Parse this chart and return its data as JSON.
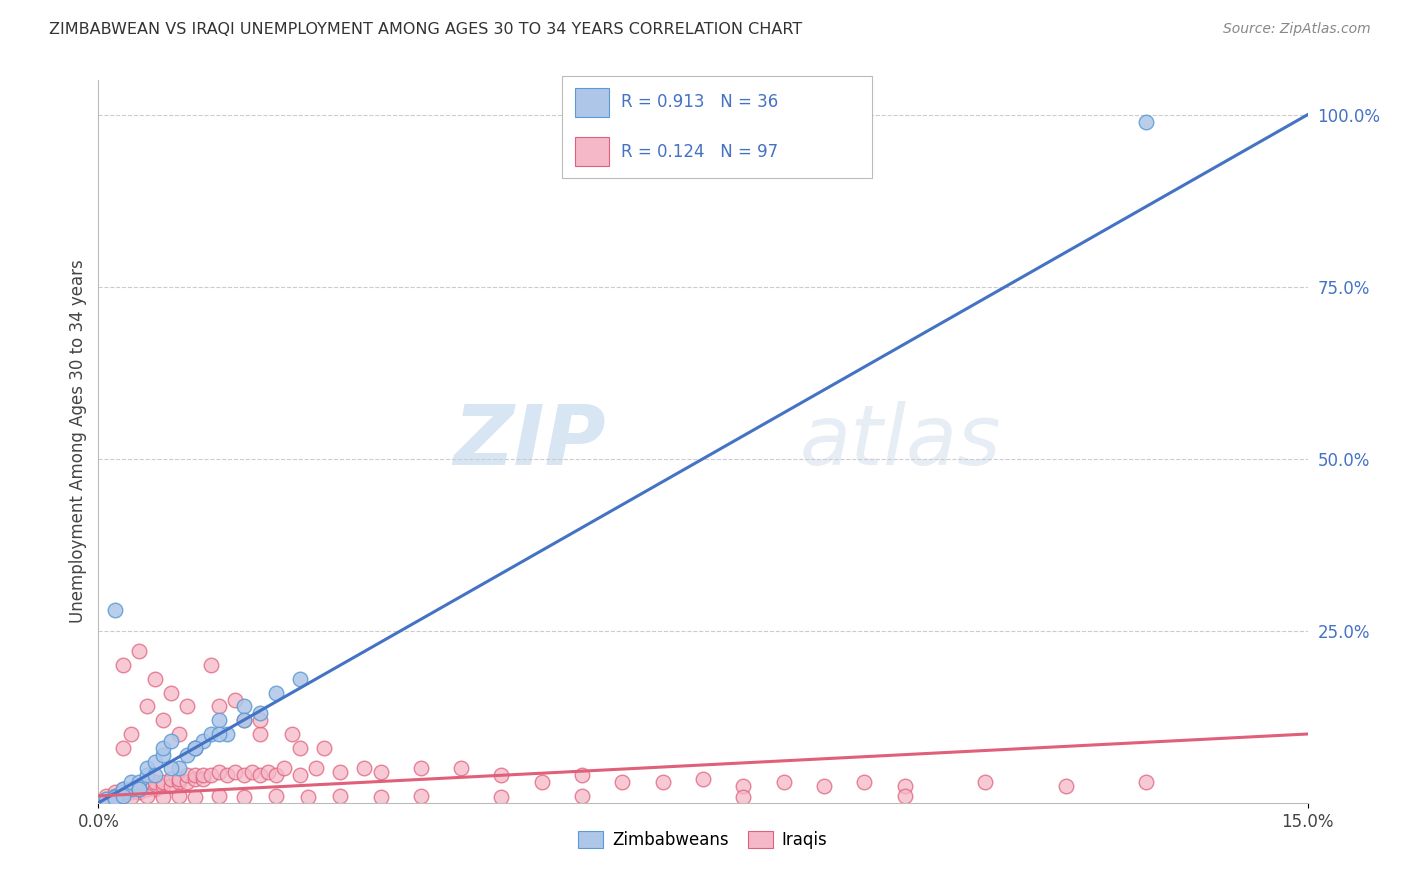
{
  "title": "ZIMBABWEAN VS IRAQI UNEMPLOYMENT AMONG AGES 30 TO 34 YEARS CORRELATION CHART",
  "source": "Source: ZipAtlas.com",
  "ylabel": "Unemployment Among Ages 30 to 34 years",
  "xlim": [
    0.0,
    0.15
  ],
  "ylim": [
    0.0,
    1.05
  ],
  "yticks_right": [
    0.25,
    0.5,
    0.75,
    1.0
  ],
  "ytick_labels_right": [
    "25.0%",
    "50.0%",
    "75.0%",
    "100.0%"
  ],
  "zim_color": "#aec6e8",
  "zim_edge_color": "#5b9bd5",
  "iraq_color": "#f4b8c8",
  "iraq_edge_color": "#e0607a",
  "zim_trend_color": "#4472c4",
  "iraq_trend_color": "#e0607a",
  "watermark_zip": "ZIP",
  "watermark_atlas": "atlas",
  "zim_trend_x0": 0.0,
  "zim_trend_y0": 0.0,
  "zim_trend_x1": 0.15,
  "zim_trend_y1": 1.0,
  "iraq_trend_x0": 0.0,
  "iraq_trend_y0": 0.01,
  "iraq_trend_x1": 0.15,
  "iraq_trend_y1": 0.1,
  "zim_points_x": [
    0.001,
    0.002,
    0.002,
    0.003,
    0.003,
    0.004,
    0.004,
    0.005,
    0.005,
    0.006,
    0.006,
    0.007,
    0.008,
    0.008,
    0.009,
    0.01,
    0.011,
    0.012,
    0.013,
    0.014,
    0.015,
    0.016,
    0.018,
    0.02,
    0.002,
    0.003,
    0.005,
    0.007,
    0.009,
    0.012,
    0.015,
    0.018,
    0.022,
    0.025,
    0.002,
    0.13
  ],
  "zim_points_y": [
    0.005,
    0.01,
    0.008,
    0.015,
    0.02,
    0.02,
    0.03,
    0.03,
    0.02,
    0.04,
    0.05,
    0.06,
    0.07,
    0.08,
    0.09,
    0.05,
    0.07,
    0.08,
    0.09,
    0.1,
    0.12,
    0.1,
    0.14,
    0.13,
    0.005,
    0.01,
    0.02,
    0.04,
    0.05,
    0.08,
    0.1,
    0.12,
    0.16,
    0.18,
    0.28,
    0.99
  ],
  "iraq_points_x": [
    0.001,
    0.001,
    0.002,
    0.002,
    0.002,
    0.003,
    0.003,
    0.003,
    0.004,
    0.004,
    0.005,
    0.005,
    0.005,
    0.006,
    0.006,
    0.007,
    0.007,
    0.008,
    0.008,
    0.009,
    0.009,
    0.01,
    0.01,
    0.011,
    0.011,
    0.012,
    0.012,
    0.013,
    0.013,
    0.014,
    0.015,
    0.016,
    0.017,
    0.018,
    0.019,
    0.02,
    0.021,
    0.022,
    0.023,
    0.025,
    0.027,
    0.03,
    0.033,
    0.035,
    0.04,
    0.045,
    0.05,
    0.055,
    0.06,
    0.065,
    0.07,
    0.075,
    0.08,
    0.085,
    0.09,
    0.095,
    0.1,
    0.11,
    0.12,
    0.13,
    0.003,
    0.004,
    0.006,
    0.008,
    0.01,
    0.012,
    0.015,
    0.018,
    0.02,
    0.025,
    0.003,
    0.005,
    0.007,
    0.009,
    0.011,
    0.014,
    0.017,
    0.02,
    0.024,
    0.028,
    0.002,
    0.004,
    0.006,
    0.008,
    0.01,
    0.012,
    0.015,
    0.018,
    0.022,
    0.026,
    0.03,
    0.035,
    0.04,
    0.05,
    0.06,
    0.08,
    0.1
  ],
  "iraq_points_y": [
    0.005,
    0.01,
    0.008,
    0.01,
    0.015,
    0.01,
    0.015,
    0.02,
    0.015,
    0.02,
    0.015,
    0.02,
    0.025,
    0.02,
    0.025,
    0.02,
    0.03,
    0.025,
    0.03,
    0.025,
    0.035,
    0.03,
    0.035,
    0.03,
    0.04,
    0.035,
    0.04,
    0.035,
    0.04,
    0.04,
    0.045,
    0.04,
    0.045,
    0.04,
    0.045,
    0.04,
    0.045,
    0.04,
    0.05,
    0.04,
    0.05,
    0.045,
    0.05,
    0.045,
    0.05,
    0.05,
    0.04,
    0.03,
    0.04,
    0.03,
    0.03,
    0.035,
    0.025,
    0.03,
    0.025,
    0.03,
    0.025,
    0.03,
    0.025,
    0.03,
    0.08,
    0.1,
    0.14,
    0.12,
    0.1,
    0.08,
    0.14,
    0.12,
    0.1,
    0.08,
    0.2,
    0.22,
    0.18,
    0.16,
    0.14,
    0.2,
    0.15,
    0.12,
    0.1,
    0.08,
    0.005,
    0.008,
    0.01,
    0.008,
    0.01,
    0.008,
    0.01,
    0.008,
    0.01,
    0.008,
    0.01,
    0.008,
    0.01,
    0.008,
    0.01,
    0.008,
    0.01
  ]
}
